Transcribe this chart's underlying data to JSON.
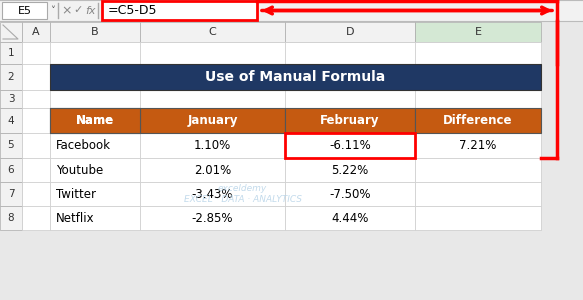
{
  "title": "Use of Manual Formula",
  "title_bg": "#1F3864",
  "title_fg": "#FFFFFF",
  "header_bg": "#C55A11",
  "header_fg": "#FFFFFF",
  "headers": [
    "Name",
    "January",
    "February",
    "Difference"
  ],
  "rows": [
    [
      "Facebook",
      "1.10%",
      "-6.11%",
      "7.21%"
    ],
    [
      "Youtube",
      "2.01%",
      "5.22%",
      ""
    ],
    [
      "Twitter",
      "-3.43%",
      "-7.50%",
      ""
    ],
    [
      "Netflix",
      "-2.85%",
      "4.44%",
      ""
    ]
  ],
  "formula_bar_text": "=C5-D5",
  "cell_ref": "E5",
  "red_color": "#FF0000",
  "selected_cell_col": 3,
  "selected_cell_row": 0,
  "col_header_labels": [
    "A",
    "B",
    "C",
    "D",
    "E"
  ],
  "row_header_labels": [
    "1",
    "2",
    "3",
    "4",
    "5",
    "6",
    "7",
    "8"
  ],
  "formula_bar_bg": "#F2F2F2",
  "col_E_header_bg": "#D4E8D4",
  "spreadsheet_bg": "#FFFFFF",
  "outer_bg": "#E8E8E8",
  "row_header_bg": "#F2F2F2",
  "col_header_bg": "#F2F2F2",
  "grid_line_color": "#CCCCCC",
  "heavy_line_color": "#555555",
  "watermark_text": "exceldemy\nEXCEL · DATA · ANALYTICS",
  "watermark_color": "#B8D4E8"
}
